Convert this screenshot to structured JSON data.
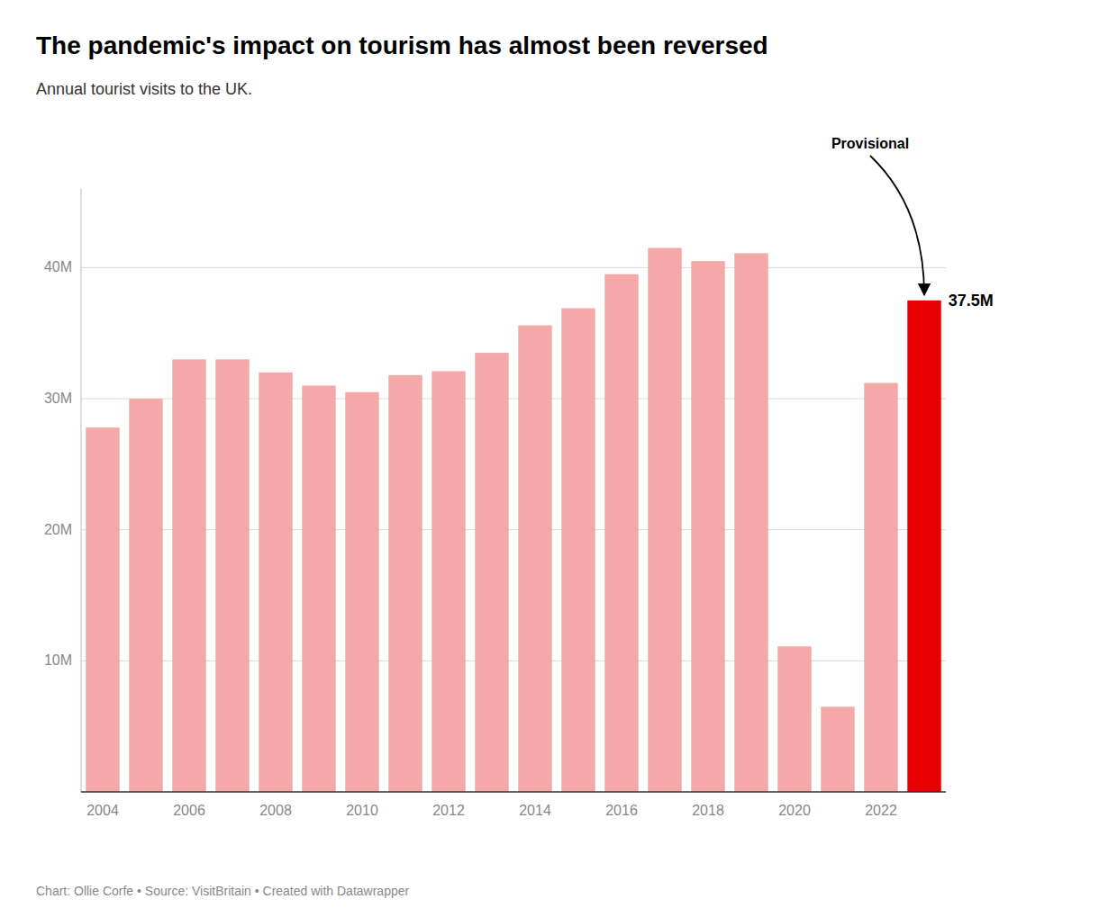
{
  "chart_data": {
    "type": "bar",
    "title": "The pandemic's impact on tourism has almost been reversed",
    "subtitle": "Annual tourist visits to the UK.",
    "footer": "Chart: Ollie Corfe • Source: VisitBritain • Created with Datawrapper",
    "categories": [
      "2004",
      null,
      "2006",
      null,
      "2008",
      null,
      "2010",
      null,
      "2012",
      null,
      "2014",
      null,
      "2016",
      null,
      "2018",
      null,
      "2020",
      null,
      "2022",
      null
    ],
    "values": [
      27.8,
      30.0,
      33.0,
      33.0,
      32.0,
      31.0,
      30.5,
      31.8,
      32.1,
      33.5,
      35.6,
      36.9,
      39.5,
      41.5,
      40.5,
      41.1,
      11.1,
      6.5,
      31.2,
      37.5
    ],
    "colors": [
      "#f4a9a8",
      "#f4a9a8",
      "#f4a9a8",
      "#f4a9a8",
      "#f4a9a8",
      "#f4a9a8",
      "#f4a9a8",
      "#f4a9a8",
      "#f4a9a8",
      "#f4a9a8",
      "#f4a9a8",
      "#f4a9a8",
      "#f4a9a8",
      "#f4a9a8",
      "#f4a9a8",
      "#f4a9a8",
      "#f4a9a8",
      "#f4a9a8",
      "#f4a9a8",
      "#e60000"
    ],
    "ylim": [
      0,
      46
    ],
    "yticks": [
      {
        "value": 10,
        "label": "10M"
      },
      {
        "value": 20,
        "label": "20M"
      },
      {
        "value": 30,
        "label": "30M"
      },
      {
        "value": 40,
        "label": "40M"
      }
    ],
    "grid": true,
    "annotations": [
      {
        "text": "37.5M",
        "value": 37.5
      },
      {
        "text": "Provisional"
      }
    ]
  }
}
